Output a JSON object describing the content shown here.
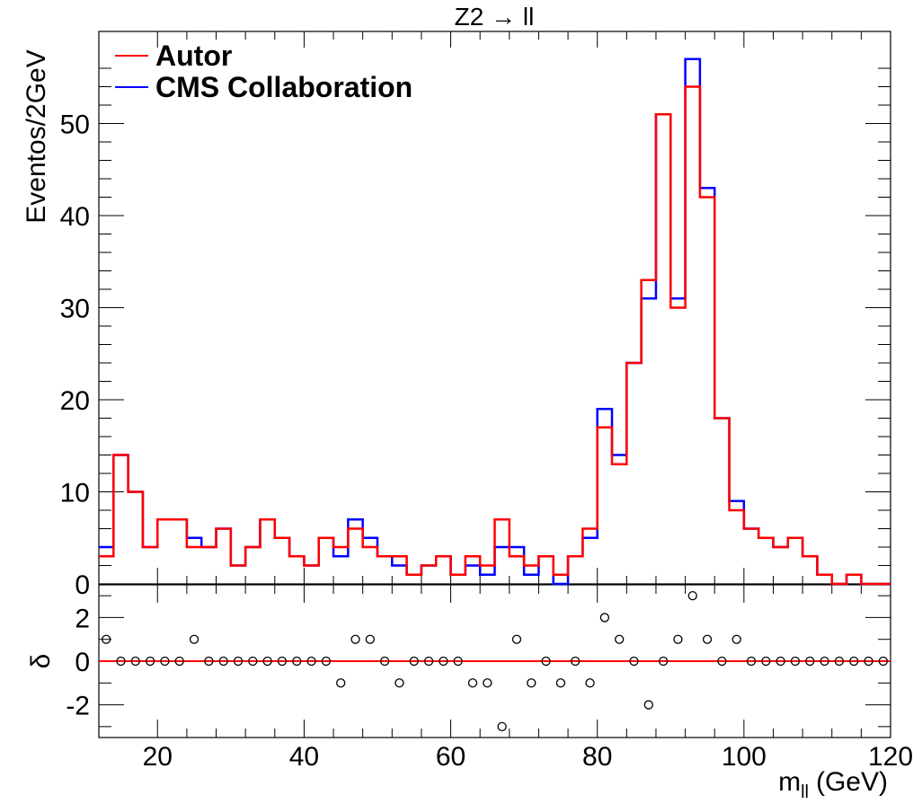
{
  "chart_data": {
    "type": "histogram",
    "title": "Z2 → ll",
    "xlabel": "m",
    "xlabel_subscript": "ll",
    "xlabel_unit": "(GeV)",
    "ylabel": "Eventos/2GeV",
    "ratio_ylabel": "δ",
    "xlim": [
      12,
      120
    ],
    "ylim": [
      0,
      60
    ],
    "ratio_ylim": [
      -3.5,
      3.5
    ],
    "bin_edges": [
      12,
      14,
      16,
      18,
      20,
      22,
      24,
      26,
      28,
      30,
      32,
      34,
      36,
      38,
      40,
      42,
      44,
      46,
      48,
      50,
      52,
      54,
      56,
      58,
      60,
      62,
      64,
      66,
      68,
      70,
      72,
      74,
      76,
      78,
      80,
      82,
      84,
      86,
      88,
      90,
      92,
      94,
      96,
      98,
      100,
      102,
      104,
      106,
      108,
      110,
      112,
      114,
      116,
      118,
      120
    ],
    "x_ticks": [
      20,
      40,
      60,
      80,
      100,
      120
    ],
    "y_ticks": [
      0,
      10,
      20,
      30,
      40,
      50
    ],
    "ratio_y_ticks": [
      -2,
      0,
      2
    ],
    "legend_position": "top-left",
    "series": [
      {
        "name": "Autor",
        "color": "#ff0000",
        "values": [
          3,
          14,
          10,
          4,
          7,
          7,
          4,
          4,
          6,
          2,
          4,
          7,
          5,
          3,
          2,
          5,
          4,
          6,
          4,
          3,
          3,
          1,
          2,
          3,
          1,
          3,
          2,
          7,
          3,
          2,
          3,
          1,
          3,
          6,
          17,
          13,
          24,
          33,
          51,
          30,
          54,
          42,
          18,
          8,
          6,
          5,
          4,
          5,
          3,
          1,
          0,
          1,
          0,
          0
        ]
      },
      {
        "name": "CMS Collaboration",
        "color": "#0000ff",
        "values": [
          4,
          14,
          10,
          4,
          7,
          7,
          5,
          4,
          6,
          2,
          4,
          7,
          5,
          3,
          2,
          5,
          3,
          7,
          5,
          3,
          2,
          1,
          2,
          3,
          1,
          2,
          1,
          4,
          4,
          1,
          3,
          0,
          3,
          5,
          19,
          14,
          24,
          31,
          51,
          31,
          57,
          43,
          18,
          9,
          6,
          5,
          4,
          5,
          3,
          1,
          0,
          1,
          0,
          0
        ]
      }
    ],
    "ratio_values": [
      1,
      0,
      0,
      0,
      0,
      0,
      1,
      0,
      0,
      0,
      0,
      0,
      0,
      0,
      0,
      0,
      -1,
      1,
      1,
      0,
      -1,
      0,
      0,
      0,
      0,
      -1,
      -1,
      -3,
      1,
      -1,
      0,
      -1,
      0,
      -1,
      2,
      1,
      0,
      -2,
      0,
      1,
      3,
      1,
      0,
      1,
      0,
      0,
      0,
      0,
      0,
      0,
      0,
      0,
      0,
      0
    ],
    "ratio_reference_line": 0,
    "ratio_line_color": "#ff0000"
  }
}
